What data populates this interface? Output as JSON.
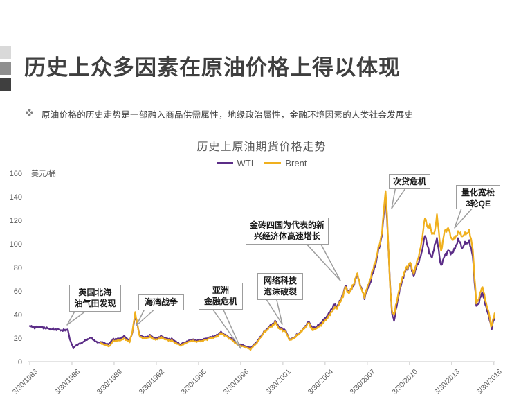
{
  "slide": {
    "title": "历史上众多因素在原油价格上得以体现",
    "bullet": "原油价格的历史走势是一部融入商品供需属性，地缘政治属性，金融环境因素的人类社会发展史",
    "bullet_icon": "four-diamond-icon",
    "accent_colors": [
      "#d9d9d9",
      "#8f8f8f",
      "#3f3f3f"
    ]
  },
  "chart": {
    "title": "历史上原油期货价格走势",
    "unit_label": "美元/桶",
    "legend": [
      {
        "label": "WTI",
        "color": "#5b2d87"
      },
      {
        "label": "Brent",
        "color": "#f0b01e"
      }
    ]
  },
  "annotations": {
    "c1": {
      "line1": "英国北海",
      "line2": "油气田发现"
    },
    "c2": {
      "line1": "海湾战争",
      "line2": ""
    },
    "c3": {
      "line1": "亚洲",
      "line2": "金融危机"
    },
    "c4": {
      "line1": "网络科技",
      "line2": "泡沫破裂"
    },
    "c5": {
      "line1": "金砖四国为代表的新",
      "line2": "兴经济体高速增长"
    },
    "c6": {
      "line1": "次贷危机",
      "line2": ""
    },
    "c7": {
      "line1": "量化宽松",
      "line2": "3轮QE"
    }
  },
  "chart_data": {
    "type": "line",
    "title": "历史上原油期货价格走势",
    "xlabel": "",
    "ylabel": "美元/桶",
    "ylim": [
      0,
      160
    ],
    "yticks": [
      0,
      20,
      40,
      60,
      80,
      100,
      120,
      140,
      160
    ],
    "xtick_years": [
      1983.25,
      1986.25,
      1989.25,
      1992.25,
      1995.25,
      1998.25,
      2001.25,
      2004.25,
      2007.25,
      2010.25,
      2013.25,
      2016.25
    ],
    "xticklabels": [
      "3/30/1983",
      "3/30/1986",
      "3/30/1989",
      "3/30/1992",
      "3/30/1995",
      "3/30/1998",
      "3/30/2001",
      "3/30/2004",
      "3/30/2007",
      "3/30/2010",
      "3/30/2013",
      "3/30/2016"
    ],
    "grid": false,
    "legend_position": "top",
    "annotations": [
      "英国北海油气田发现",
      "海湾战争",
      "亚洲金融危机",
      "网络科技泡沫破裂",
      "金砖四国为代表的新兴经济体高速增长",
      "次贷危机",
      "量化宽松3轮QE"
    ],
    "series": [
      {
        "name": "WTI",
        "color": "#5b2d87",
        "points": [
          [
            1983.25,
            30
          ],
          [
            1983.6,
            29
          ],
          [
            1984,
            29.5
          ],
          [
            1984.4,
            28.5
          ],
          [
            1984.8,
            27.5
          ],
          [
            1985.2,
            27.5
          ],
          [
            1985.6,
            26.5
          ],
          [
            1985.95,
            27.5
          ],
          [
            1986.1,
            19
          ],
          [
            1986.35,
            11.5
          ],
          [
            1986.6,
            14.5
          ],
          [
            1986.9,
            15.5
          ],
          [
            1987.2,
            18
          ],
          [
            1987.6,
            20.5
          ],
          [
            1988,
            16.5
          ],
          [
            1988.4,
            16.5
          ],
          [
            1988.8,
            14.5
          ],
          [
            1989.2,
            19
          ],
          [
            1989.6,
            19.5
          ],
          [
            1990,
            21.5
          ],
          [
            1990.35,
            17.5
          ],
          [
            1990.55,
            25
          ],
          [
            1990.75,
            39.5
          ],
          [
            1990.85,
            35
          ],
          [
            1991.05,
            22.5
          ],
          [
            1991.4,
            20.5
          ],
          [
            1991.8,
            22
          ],
          [
            1992.2,
            19.5
          ],
          [
            1992.6,
            21.5
          ],
          [
            1993,
            19.5
          ],
          [
            1993.4,
            19
          ],
          [
            1993.95,
            14.5
          ],
          [
            1994.3,
            16.5
          ],
          [
            1994.7,
            18.5
          ],
          [
            1995.1,
            18
          ],
          [
            1995.5,
            18.5
          ],
          [
            1996,
            20.5
          ],
          [
            1996.5,
            22
          ],
          [
            1996.85,
            25
          ],
          [
            1997.1,
            23
          ],
          [
            1997.6,
            19.5
          ],
          [
            1998,
            15.5
          ],
          [
            1998.5,
            13.5
          ],
          [
            1998.95,
            11.5
          ],
          [
            1999.4,
            17
          ],
          [
            1999.9,
            25
          ],
          [
            2000.3,
            30
          ],
          [
            2000.75,
            34
          ],
          [
            2001,
            29
          ],
          [
            2001.4,
            27
          ],
          [
            2001.75,
            18.5
          ],
          [
            2002.1,
            21
          ],
          [
            2002.6,
            26.5
          ],
          [
            2003.1,
            34
          ],
          [
            2003.35,
            28
          ],
          [
            2003.8,
            31
          ],
          [
            2004.2,
            36
          ],
          [
            2004.6,
            42
          ],
          [
            2004.85,
            48
          ],
          [
            2005.1,
            47
          ],
          [
            2005.4,
            53
          ],
          [
            2005.7,
            64
          ],
          [
            2005.95,
            59
          ],
          [
            2006.2,
            63
          ],
          [
            2006.55,
            74
          ],
          [
            2006.85,
            61
          ],
          [
            2007.05,
            55
          ],
          [
            2007.4,
            65
          ],
          [
            2007.8,
            81
          ],
          [
            2008.1,
            97
          ],
          [
            2008.3,
            108
          ],
          [
            2008.45,
            128
          ],
          [
            2008.55,
            140
          ],
          [
            2008.65,
            122
          ],
          [
            2008.85,
            70
          ],
          [
            2009,
            42
          ],
          [
            2009.15,
            34
          ],
          [
            2009.4,
            52
          ],
          [
            2009.7,
            68
          ],
          [
            2010,
            78
          ],
          [
            2010.3,
            83
          ],
          [
            2010.55,
            73
          ],
          [
            2010.8,
            82
          ],
          [
            2011.1,
            91
          ],
          [
            2011.35,
            108
          ],
          [
            2011.55,
            97
          ],
          [
            2011.7,
            92
          ],
          [
            2011.85,
            87
          ],
          [
            2012.05,
            100
          ],
          [
            2012.2,
            104
          ],
          [
            2012.5,
            81
          ],
          [
            2012.75,
            90
          ],
          [
            2013,
            94
          ],
          [
            2013.3,
            92
          ],
          [
            2013.55,
            98
          ],
          [
            2013.7,
            104
          ],
          [
            2014,
            97
          ],
          [
            2014.2,
            100
          ],
          [
            2014.5,
            102
          ],
          [
            2014.75,
            90
          ],
          [
            2015,
            47
          ],
          [
            2015.2,
            51
          ],
          [
            2015.45,
            59
          ],
          [
            2015.7,
            46
          ],
          [
            2015.95,
            36
          ],
          [
            2016.1,
            28
          ],
          [
            2016.2,
            34
          ],
          [
            2016.3,
            39
          ]
        ]
      },
      {
        "name": "Brent",
        "color": "#f0b01e",
        "points": [
          [
            1988.3,
            15.5
          ],
          [
            1988.55,
            14.5
          ],
          [
            1988.9,
            13
          ],
          [
            1989.2,
            17.5
          ],
          [
            1989.6,
            18
          ],
          [
            1990,
            19.5
          ],
          [
            1990.35,
            16.5
          ],
          [
            1990.55,
            26
          ],
          [
            1990.75,
            41
          ],
          [
            1990.85,
            36
          ],
          [
            1991.05,
            21.5
          ],
          [
            1991.4,
            19.5
          ],
          [
            1991.8,
            21
          ],
          [
            1992.2,
            18.5
          ],
          [
            1992.6,
            20.5
          ],
          [
            1993,
            18.5
          ],
          [
            1993.4,
            17.5
          ],
          [
            1993.95,
            13.5
          ],
          [
            1994.3,
            15.5
          ],
          [
            1994.7,
            17.5
          ],
          [
            1995.1,
            17
          ],
          [
            1995.5,
            17.5
          ],
          [
            1996,
            19.5
          ],
          [
            1996.5,
            21
          ],
          [
            1996.85,
            24
          ],
          [
            1997.1,
            22.5
          ],
          [
            1997.6,
            18.5
          ],
          [
            1998,
            14.5
          ],
          [
            1998.5,
            12.5
          ],
          [
            1998.95,
            10.5
          ],
          [
            1999.4,
            16
          ],
          [
            1999.9,
            24.5
          ],
          [
            2000.3,
            29
          ],
          [
            2000.75,
            33
          ],
          [
            2001,
            27.5
          ],
          [
            2001.4,
            26
          ],
          [
            2001.75,
            18
          ],
          [
            2002.1,
            20.5
          ],
          [
            2002.6,
            26
          ],
          [
            2003.1,
            33
          ],
          [
            2003.35,
            26.5
          ],
          [
            2003.8,
            29.5
          ],
          [
            2004.2,
            34
          ],
          [
            2004.6,
            40
          ],
          [
            2004.85,
            45
          ],
          [
            2005.1,
            46
          ],
          [
            2005.4,
            52
          ],
          [
            2005.7,
            63
          ],
          [
            2005.95,
            58
          ],
          [
            2006.2,
            64
          ],
          [
            2006.55,
            75
          ],
          [
            2006.85,
            60
          ],
          [
            2007.05,
            56
          ],
          [
            2007.4,
            68
          ],
          [
            2007.8,
            84
          ],
          [
            2008.1,
            99
          ],
          [
            2008.3,
            110
          ],
          [
            2008.45,
            132
          ],
          [
            2008.55,
            145
          ],
          [
            2008.65,
            126
          ],
          [
            2008.85,
            68
          ],
          [
            2009,
            44
          ],
          [
            2009.15,
            39
          ],
          [
            2009.4,
            55
          ],
          [
            2009.7,
            70
          ],
          [
            2010,
            79
          ],
          [
            2010.3,
            84
          ],
          [
            2010.55,
            75
          ],
          [
            2010.8,
            85
          ],
          [
            2011.1,
            100
          ],
          [
            2011.35,
            123
          ],
          [
            2011.55,
            113
          ],
          [
            2011.7,
            117
          ],
          [
            2011.85,
            107
          ],
          [
            2012.05,
            111
          ],
          [
            2012.2,
            124
          ],
          [
            2012.5,
            93
          ],
          [
            2012.75,
            111
          ],
          [
            2013,
            113
          ],
          [
            2013.3,
            103
          ],
          [
            2013.55,
            106
          ],
          [
            2013.7,
            110
          ],
          [
            2014,
            107
          ],
          [
            2014.2,
            108
          ],
          [
            2014.5,
            111
          ],
          [
            2014.75,
            96
          ],
          [
            2015,
            49
          ],
          [
            2015.2,
            55
          ],
          [
            2015.45,
            64
          ],
          [
            2015.7,
            49
          ],
          [
            2015.95,
            39
          ],
          [
            2016.05,
            29
          ],
          [
            2016.2,
            36
          ],
          [
            2016.3,
            41
          ]
        ]
      }
    ]
  }
}
